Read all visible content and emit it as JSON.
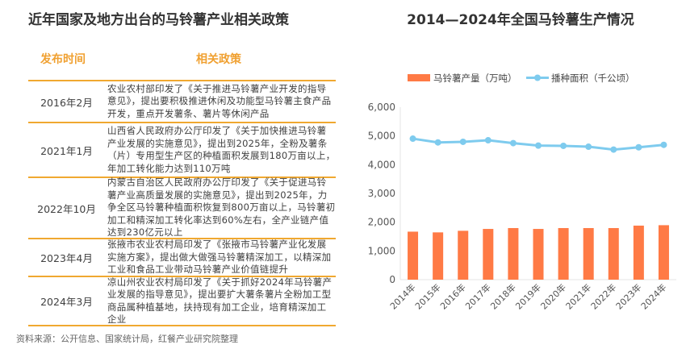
{
  "left": {
    "title": "近年国家及地方出台的马铃薯产业相关政策",
    "headers": [
      "发布时间",
      "相关政策"
    ],
    "rows": [
      {
        "date": "2016年2月",
        "policy": "农业农村部印发了《关于推进马铃薯产业开发的指导意见》，提出要积极推进休闲及功能型马铃薯主食产品开发，重点开发薯条、薯片等休闲产品"
      },
      {
        "date": "2021年1月",
        "policy": "山西省人民政府办公厅印发了《关于加快推进马铃薯产业发展的实施意见》，提出到2025年，全粉及薯条（片）专用型生产区的种植面积发展到180万亩以上，年加工转化能力达到110万吨"
      },
      {
        "date": "2022年10月",
        "policy": "内蒙古自治区人民政府办公厅印发了《关于促进马铃薯产业高质量发展的实施意见》，提出到2025年，力争全区马铃薯种植面积恢复到800万亩以上，马铃薯初加工和精深加工转化率达到60%左右，全产业链产值达到230亿元以上"
      },
      {
        "date": "2023年4月",
        "policy": "张掖市农业农村局印发了《张掖市马铃薯产业化发展实施方案》，提出做大做强马铃薯精深加工，以精深加工业和食品工业带动马铃薯产业价值链提升"
      },
      {
        "date": "2024年3月",
        "policy": "凉山州农业农村局印发了《关于抓好2024年马铃薯产业发展的指导意见》，提出要扩大薯条薯片全粉加工型商品属种植基地，扶持现有加工企业，培育精深加工企业"
      }
    ],
    "source": "资料来源：公开信息、国家统计局，红餐产业研究院整理"
  },
  "watermark": "红餐产业研究院",
  "chart_data": {
    "type": "bar+line",
    "title": "2014—2024年全国马铃薯生产情况",
    "categories": [
      "2014年",
      "2015年",
      "2016年",
      "2017年",
      "2018年",
      "2019年",
      "2020年",
      "2021年",
      "2022年",
      "2023年",
      "2024年"
    ],
    "ylim": [
      0,
      6000
    ],
    "yticks": [
      "0",
      "1,000",
      "2,000",
      "3,000",
      "4,000",
      "5,000",
      "6,000"
    ],
    "legend": "top",
    "grid": false,
    "series": [
      {
        "name": "马铃薯产量（万吨）",
        "type": "bar",
        "color": "#ff7a45",
        "values": [
          1670,
          1645,
          1700,
          1765,
          1795,
          1765,
          1795,
          1795,
          1795,
          1880,
          1895
        ]
      },
      {
        "name": "播种面积（千公顷）",
        "type": "line",
        "color": "#7ecbee",
        "values": [
          4905,
          4775,
          4795,
          4850,
          4750,
          4665,
          4655,
          4625,
          4525,
          4605,
          4690
        ]
      }
    ]
  }
}
